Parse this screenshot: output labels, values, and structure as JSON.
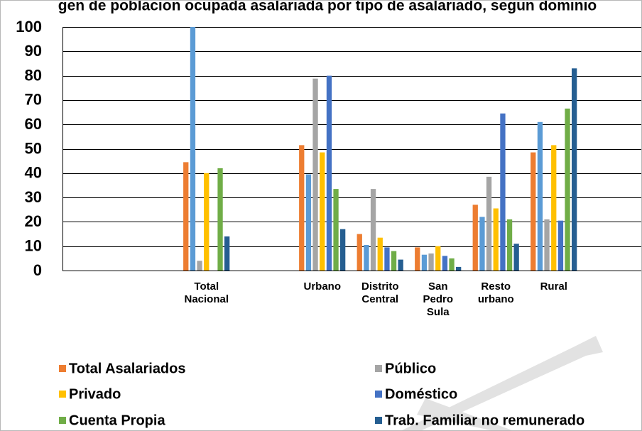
{
  "chart_data": {
    "type": "bar",
    "title": "gen de poblacion ocupada asalariada por tipo de asalariado, segun dominio",
    "categories": [
      [
        "Total",
        "Nacional"
      ],
      [],
      [
        "Urbano"
      ],
      [
        "Distrito",
        "Central"
      ],
      [
        "San",
        "Pedro",
        "Sula"
      ],
      [
        "Resto",
        "urbano"
      ],
      [
        "Rural"
      ]
    ],
    "series": [
      {
        "name": "Total Asalariados",
        "color": "#ED7D31",
        "values": [
          44.5,
          null,
          51.5,
          15.0,
          9.5,
          27.0,
          48.5
        ]
      },
      {
        "name": "Público",
        "color": "#A5A5A5",
        "values": [
          4.0,
          null,
          78.8,
          33.5,
          7.0,
          38.5,
          21.0
        ]
      },
      {
        "name": "Privado",
        "color": "#FFC000",
        "values": [
          40.0,
          null,
          48.5,
          13.5,
          10.0,
          25.5,
          51.5
        ]
      },
      {
        "name": "Doméstico",
        "color": "#4472C4",
        "values": [
          null,
          null,
          80.0,
          9.5,
          6.0,
          64.5,
          20.5
        ]
      },
      {
        "name": "Cuenta Propia",
        "color": "#70AD47",
        "values": [
          42.0,
          null,
          33.5,
          8.0,
          5.0,
          21.0,
          66.5
        ]
      },
      {
        "name": "Trab. Familiar no remunerado",
        "color": "#255E91",
        "values": [
          14.0,
          null,
          17.0,
          4.5,
          1.5,
          11.0,
          83.0
        ]
      },
      {
        "name": "",
        "color": "#5B9BD5",
        "values": [
          100,
          null,
          39.5,
          10.5,
          6.5,
          22.0,
          61.0
        ]
      }
    ],
    "bar_order": [
      0,
      6,
      1,
      2,
      3,
      4,
      5
    ],
    "ylim": [
      0,
      100
    ],
    "yticks": [
      0,
      10,
      20,
      30,
      40,
      50,
      60,
      70,
      80,
      90,
      100
    ],
    "legend_position": "bottom",
    "grid": true
  }
}
